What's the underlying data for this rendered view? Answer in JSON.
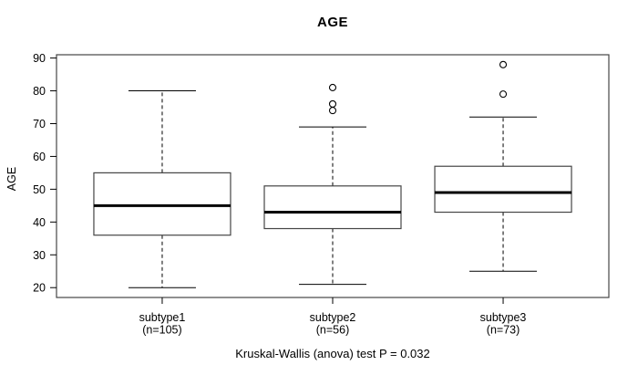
{
  "chart_data": {
    "type": "boxplot",
    "title": "AGE",
    "ylabel": "AGE",
    "xlabel": "",
    "annotation": "Kruskal-Wallis (anova) test P = 0.032",
    "ylim": [
      17,
      91
    ],
    "yticks": [
      20,
      30,
      40,
      50,
      60,
      70,
      80,
      90
    ],
    "grid": false,
    "legend": false,
    "categories": [
      "subtype1",
      "subtype2",
      "subtype3"
    ],
    "category_counts": [
      "(n=105)",
      "(n=56)",
      "(n=73)"
    ],
    "series": [
      {
        "name": "subtype1",
        "count_label": "(n=105)",
        "whisker_low": 20,
        "q1": 36,
        "median": 45,
        "q3": 55,
        "whisker_high": 80,
        "outliers": []
      },
      {
        "name": "subtype2",
        "count_label": "(n=56)",
        "whisker_low": 21,
        "q1": 38,
        "median": 43,
        "q3": 51,
        "whisker_high": 69,
        "outliers": [
          74,
          76,
          81
        ]
      },
      {
        "name": "subtype3",
        "count_label": "(n=73)",
        "whisker_low": 25,
        "q1": 43,
        "median": 49,
        "q3": 57,
        "whisker_high": 72,
        "outliers": [
          79,
          88
        ]
      }
    ],
    "colors": {
      "ink": "#000000",
      "frame": "#454545",
      "box_fill": "#ffffff"
    }
  }
}
